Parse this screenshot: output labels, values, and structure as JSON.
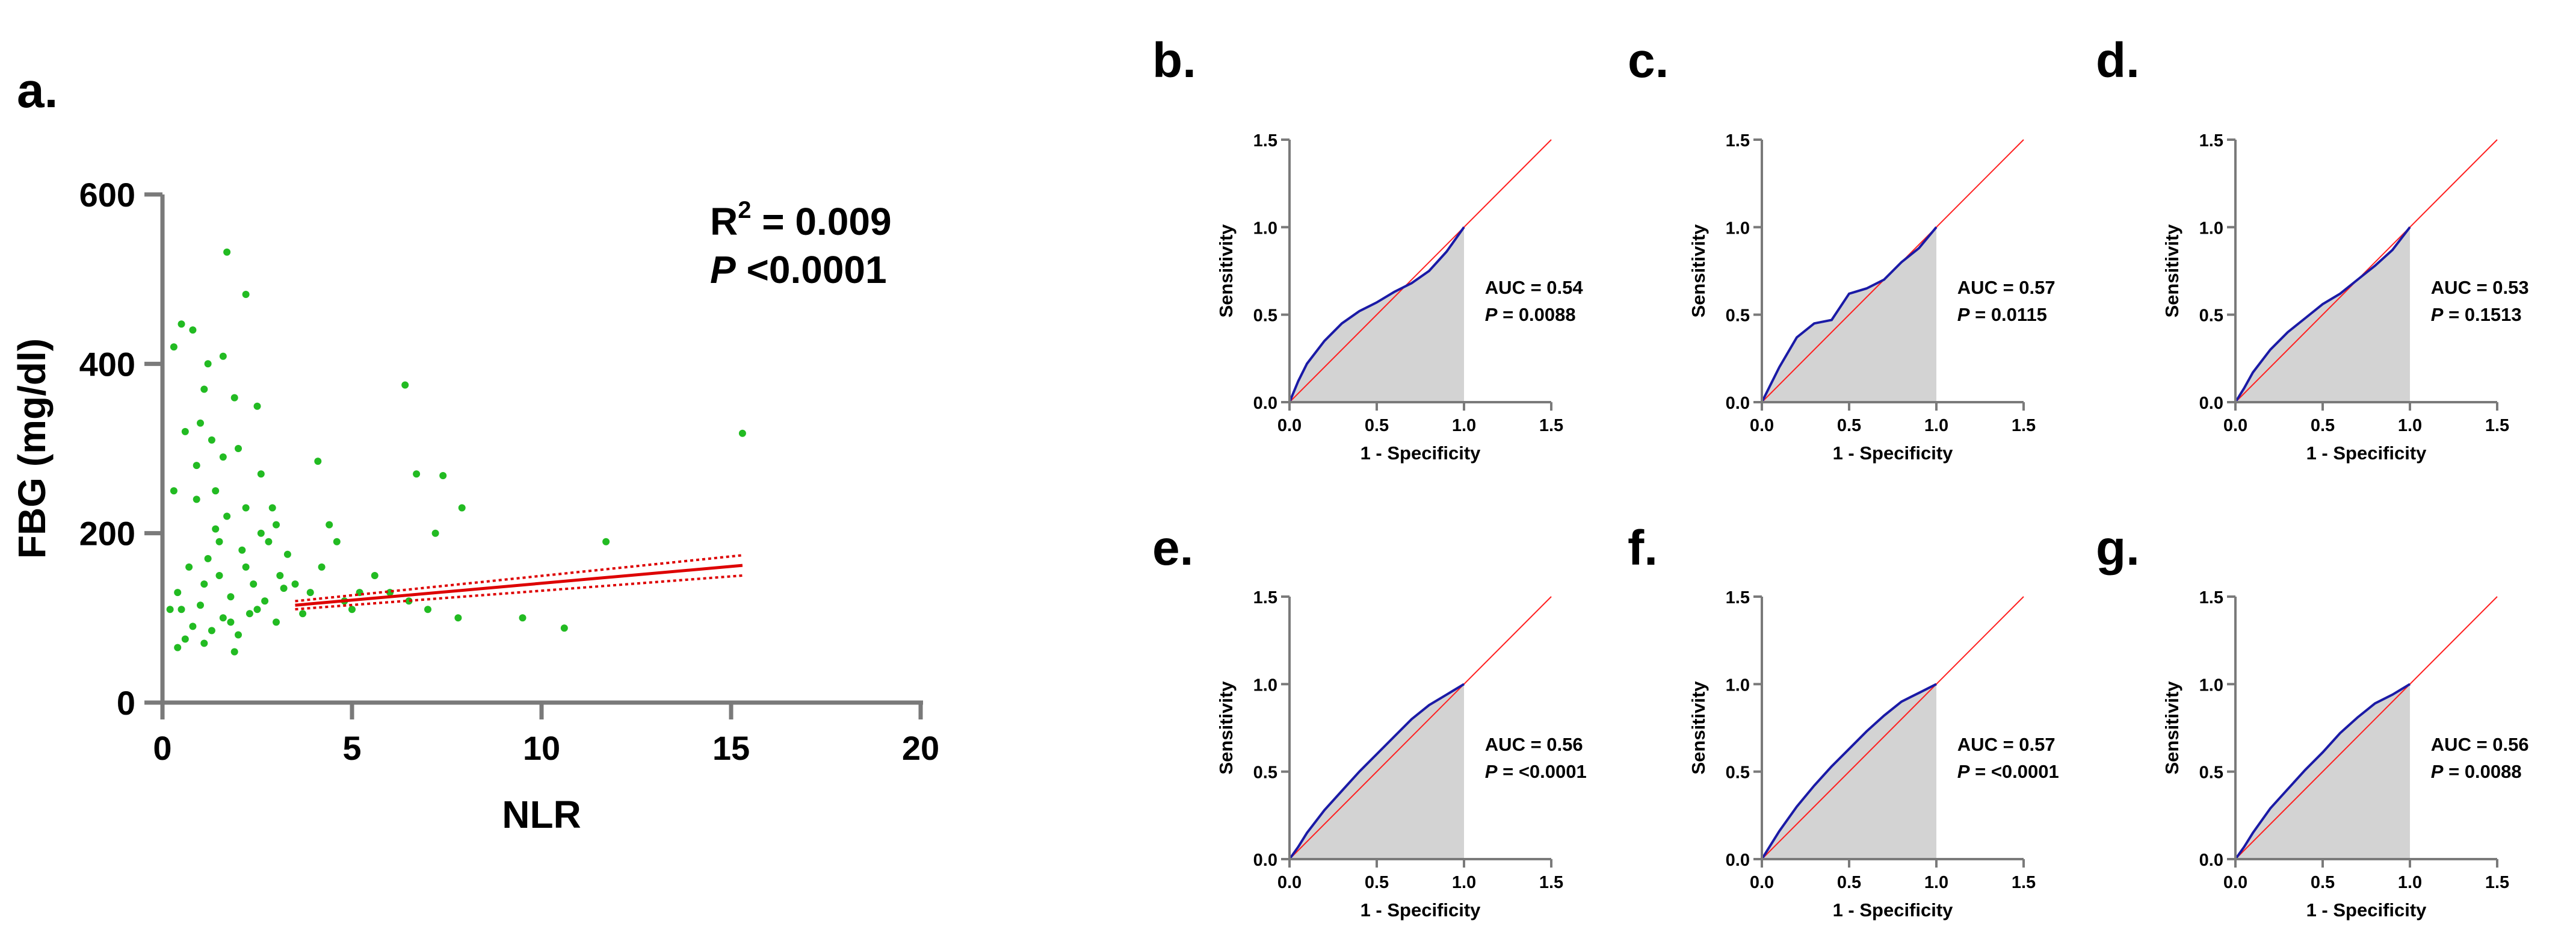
{
  "chart_data": [
    {
      "panel": "a.",
      "type": "scatter",
      "xlabel": "NLR",
      "ylabel": "FBG (mg/dl)",
      "xlim": [
        0,
        20
      ],
      "ylim": [
        0,
        600
      ],
      "xticks": [
        0,
        5,
        10,
        15,
        20
      ],
      "yticks": [
        0,
        200,
        400,
        600
      ],
      "stats": {
        "r2_prefix": "R",
        "r2_sup": "2",
        "r2_value": " = 0.009",
        "p_label": "P",
        "p_value": " <0.0001"
      },
      "regression": {
        "x": [
          3.5,
          15.3
        ],
        "y": [
          115,
          162
        ],
        "ci_width": 12
      },
      "points": [
        [
          0.5,
          447
        ],
        [
          1.2,
          400
        ],
        [
          1.6,
          409
        ],
        [
          1.7,
          532
        ],
        [
          2.2,
          482
        ],
        [
          0.8,
          440
        ],
        [
          0.3,
          420
        ],
        [
          1.1,
          370
        ],
        [
          1.9,
          360
        ],
        [
          2.5,
          350
        ],
        [
          1.0,
          330
        ],
        [
          0.6,
          320
        ],
        [
          1.3,
          310
        ],
        [
          2.0,
          300
        ],
        [
          1.6,
          290
        ],
        [
          2.6,
          270
        ],
        [
          1.4,
          250
        ],
        [
          0.9,
          240
        ],
        [
          2.2,
          230
        ],
        [
          1.7,
          220
        ],
        [
          3.0,
          210
        ],
        [
          2.8,
          190
        ],
        [
          2.1,
          180
        ],
        [
          1.2,
          170
        ],
        [
          0.7,
          160
        ],
        [
          1.5,
          150
        ],
        [
          2.4,
          140
        ],
        [
          3.2,
          135
        ],
        [
          0.4,
          130
        ],
        [
          1.8,
          125
        ],
        [
          2.7,
          120
        ],
        [
          1.0,
          115
        ],
        [
          0.5,
          110
        ],
        [
          2.3,
          105
        ],
        [
          1.6,
          100
        ],
        [
          3.0,
          95
        ],
        [
          0.8,
          90
        ],
        [
          1.3,
          85
        ],
        [
          2.0,
          80
        ],
        [
          0.6,
          75
        ],
        [
          1.1,
          70
        ],
        [
          0.4,
          65
        ],
        [
          1.9,
          60
        ],
        [
          2.6,
          200
        ],
        [
          0.9,
          280
        ],
        [
          1.5,
          190
        ],
        [
          2.2,
          160
        ],
        [
          1.1,
          140
        ],
        [
          3.1,
          150
        ],
        [
          3.5,
          140
        ],
        [
          3.9,
          130
        ],
        [
          4.2,
          160
        ],
        [
          4.6,
          190
        ],
        [
          4.4,
          210
        ],
        [
          4.1,
          285
        ],
        [
          4.8,
          120
        ],
        [
          5.2,
          130
        ],
        [
          5.0,
          110
        ],
        [
          5.6,
          150
        ],
        [
          6.0,
          130
        ],
        [
          6.5,
          120
        ],
        [
          6.4,
          375
        ],
        [
          6.7,
          270
        ],
        [
          7.4,
          268
        ],
        [
          7.9,
          230
        ],
        [
          7.2,
          200
        ],
        [
          7.0,
          110
        ],
        [
          7.8,
          100
        ],
        [
          9.5,
          100
        ],
        [
          10.6,
          88
        ],
        [
          11.7,
          190
        ],
        [
          15.3,
          318
        ],
        [
          3.3,
          175
        ],
        [
          3.7,
          105
        ],
        [
          2.9,
          230
        ],
        [
          0.2,
          110
        ],
        [
          0.3,
          250
        ],
        [
          1.4,
          205
        ],
        [
          2.5,
          110
        ],
        [
          1.8,
          95
        ]
      ]
    },
    {
      "panel": "b.",
      "type": "line",
      "xlabel": "1 - Specificity",
      "ylabel": "Sensitivity",
      "xlim": [
        0,
        1.5
      ],
      "ylim": [
        0,
        1.5
      ],
      "xticks": [
        "0.0",
        "0.5",
        "1.0",
        "1.5"
      ],
      "yticks": [
        "0.0",
        "0.5",
        "1.0",
        "1.5"
      ],
      "auc_label": "AUC = 0.54",
      "p_label": "P",
      "p_value": " = 0.0088",
      "roc_x": [
        0,
        0.05,
        0.1,
        0.2,
        0.3,
        0.4,
        0.5,
        0.6,
        0.7,
        0.8,
        0.9,
        1.0
      ],
      "roc_y": [
        0,
        0.12,
        0.22,
        0.35,
        0.45,
        0.52,
        0.57,
        0.63,
        0.68,
        0.75,
        0.86,
        1.0
      ]
    },
    {
      "panel": "c.",
      "type": "line",
      "xlabel": "1 - Specificity",
      "ylabel": "Sensitivity",
      "xlim": [
        0,
        1.5
      ],
      "ylim": [
        0,
        1.5
      ],
      "xticks": [
        "0.0",
        "0.5",
        "1.0",
        "1.5"
      ],
      "yticks": [
        "0.0",
        "0.5",
        "1.0",
        "1.5"
      ],
      "auc_label": "AUC = 0.57",
      "p_label": "P",
      "p_value": " = 0.0115",
      "roc_x": [
        0,
        0.05,
        0.1,
        0.2,
        0.3,
        0.4,
        0.5,
        0.6,
        0.7,
        0.8,
        0.9,
        1.0
      ],
      "roc_y": [
        0,
        0.1,
        0.2,
        0.37,
        0.45,
        0.47,
        0.62,
        0.65,
        0.7,
        0.8,
        0.88,
        1.0
      ]
    },
    {
      "panel": "d.",
      "type": "line",
      "xlabel": "1 - Specificity",
      "ylabel": "Sensitivity",
      "xlim": [
        0,
        1.5
      ],
      "ylim": [
        0,
        1.5
      ],
      "xticks": [
        "0.0",
        "0.5",
        "1.0",
        "1.5"
      ],
      "yticks": [
        "0.0",
        "0.5",
        "1.0",
        "1.5"
      ],
      "auc_label": "AUC = 0.53",
      "p_label": "P",
      "p_value": " = 0.1513",
      "roc_x": [
        0,
        0.05,
        0.1,
        0.2,
        0.3,
        0.4,
        0.5,
        0.6,
        0.7,
        0.8,
        0.9,
        1.0
      ],
      "roc_y": [
        0,
        0.08,
        0.17,
        0.3,
        0.4,
        0.48,
        0.56,
        0.62,
        0.7,
        0.78,
        0.87,
        1.0
      ]
    },
    {
      "panel": "e.",
      "type": "line",
      "xlabel": "1 - Specificity",
      "ylabel": "Sensitivity",
      "xlim": [
        0,
        1.5
      ],
      "ylim": [
        0,
        1.5
      ],
      "xticks": [
        "0.0",
        "0.5",
        "1.0",
        "1.5"
      ],
      "yticks": [
        "0.0",
        "0.5",
        "1.0",
        "1.5"
      ],
      "auc_label": "AUC = 0.56",
      "p_label": "P",
      "p_value": " = <0.0001",
      "roc_x": [
        0,
        0.05,
        0.1,
        0.2,
        0.3,
        0.4,
        0.5,
        0.6,
        0.7,
        0.8,
        0.9,
        1.0
      ],
      "roc_y": [
        0,
        0.07,
        0.15,
        0.28,
        0.39,
        0.5,
        0.6,
        0.7,
        0.8,
        0.88,
        0.94,
        1.0
      ]
    },
    {
      "panel": "f.",
      "type": "line",
      "xlabel": "1 - Specificity",
      "ylabel": "Sensitivity",
      "xlim": [
        0,
        1.5
      ],
      "ylim": [
        0,
        1.5
      ],
      "xticks": [
        "0.0",
        "0.5",
        "1.0",
        "1.5"
      ],
      "yticks": [
        "0.0",
        "0.5",
        "1.0",
        "1.5"
      ],
      "auc_label": "AUC = 0.57",
      "p_label": "P",
      "p_value": " = <0.0001",
      "roc_x": [
        0,
        0.05,
        0.1,
        0.2,
        0.3,
        0.4,
        0.5,
        0.6,
        0.7,
        0.8,
        0.9,
        1.0
      ],
      "roc_y": [
        0,
        0.08,
        0.16,
        0.3,
        0.42,
        0.53,
        0.63,
        0.73,
        0.82,
        0.9,
        0.95,
        1.0
      ]
    },
    {
      "panel": "g.",
      "type": "line",
      "xlabel": "1 - Specificity",
      "ylabel": "Sensitivity",
      "xlim": [
        0,
        1.5
      ],
      "ylim": [
        0,
        1.5
      ],
      "xticks": [
        "0.0",
        "0.5",
        "1.0",
        "1.5"
      ],
      "yticks": [
        "0.0",
        "0.5",
        "1.0",
        "1.5"
      ],
      "auc_label": "AUC = 0.56",
      "p_label": "P",
      "p_value": " = 0.0088",
      "roc_x": [
        0,
        0.05,
        0.1,
        0.2,
        0.3,
        0.4,
        0.5,
        0.6,
        0.7,
        0.8,
        0.9,
        1.0
      ],
      "roc_y": [
        0,
        0.07,
        0.15,
        0.29,
        0.4,
        0.51,
        0.61,
        0.72,
        0.81,
        0.89,
        0.94,
        1.0
      ]
    }
  ],
  "colors": {
    "scatter_point": "#22bb22",
    "regression": "#dd0000",
    "roc_curve": "#1a1aa6",
    "reference_line": "#ff2020",
    "auc_fill": "#d3d3d3",
    "axis": "#7a7a7a",
    "text": "#000000"
  }
}
